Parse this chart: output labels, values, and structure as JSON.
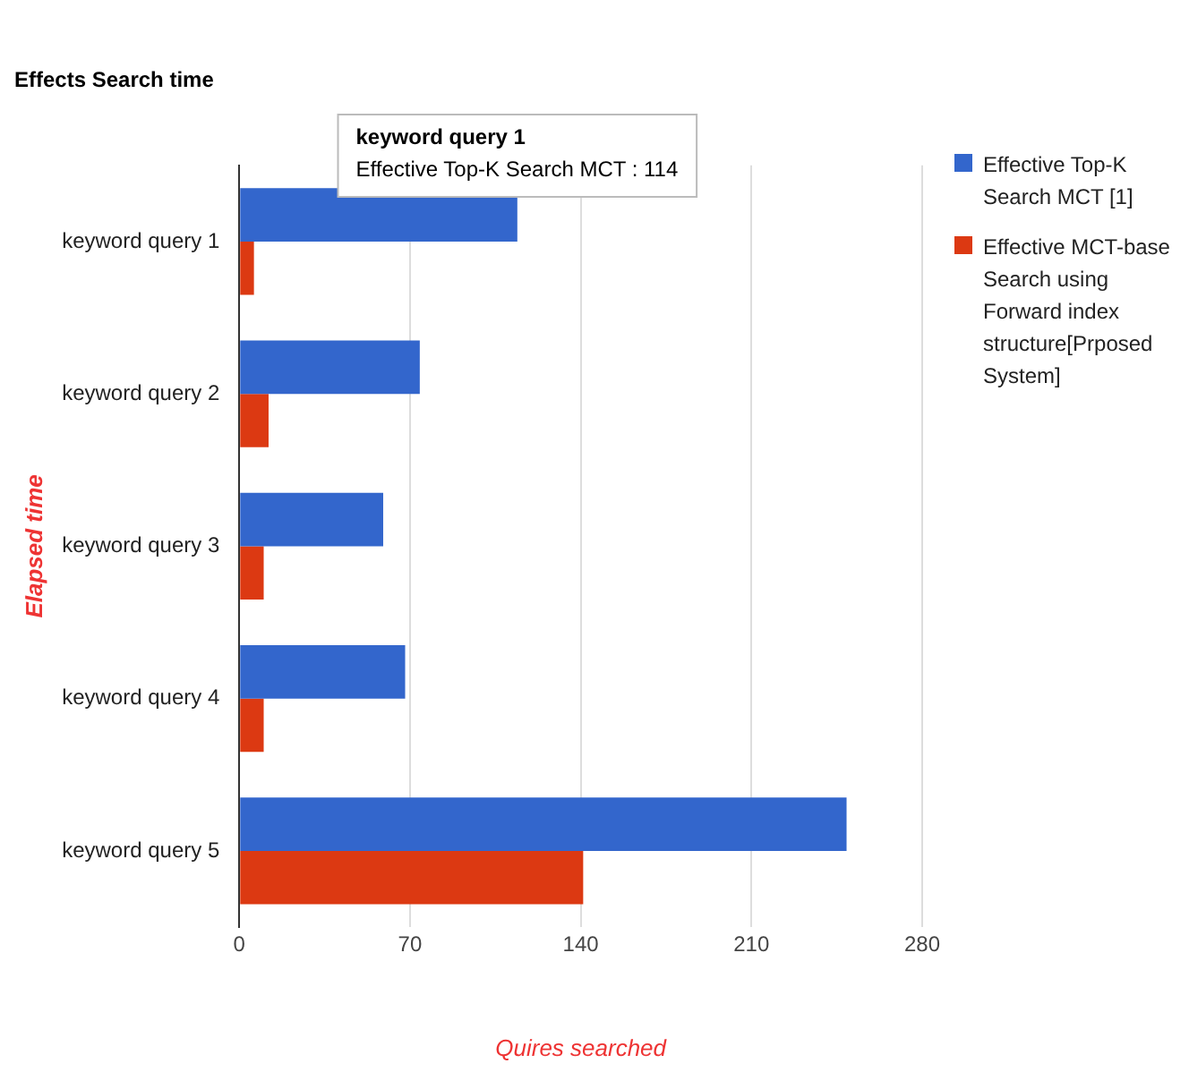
{
  "chart_data": {
    "type": "bar",
    "orientation": "horizontal",
    "title": "Effects Search time",
    "xlabel": "Quires searched",
    "ylabel": "Elapsed time",
    "categories": [
      "keyword query 1",
      "keyword query 2",
      "keyword query 3",
      "keyword query 4",
      "keyword query 5"
    ],
    "series": [
      {
        "name": "Effective Top-K Search MCT [1]",
        "color": "#3366cc",
        "values": [
          114,
          74,
          59,
          68,
          249
        ]
      },
      {
        "name": "Effective MCT-base Search using Forward index structure[Prposed System]",
        "color": "#dc3912",
        "values": [
          6,
          12,
          10,
          10,
          141
        ]
      }
    ],
    "xlim": [
      0,
      280
    ],
    "xticks": [
      0,
      70,
      140,
      210,
      280
    ],
    "grid": "x",
    "legend": "right",
    "annotations": [
      {
        "text": "keyword query 1\nEffective Top-K Search MCT : 114",
        "x": 114,
        "y": "keyword query 1"
      }
    ]
  }
}
